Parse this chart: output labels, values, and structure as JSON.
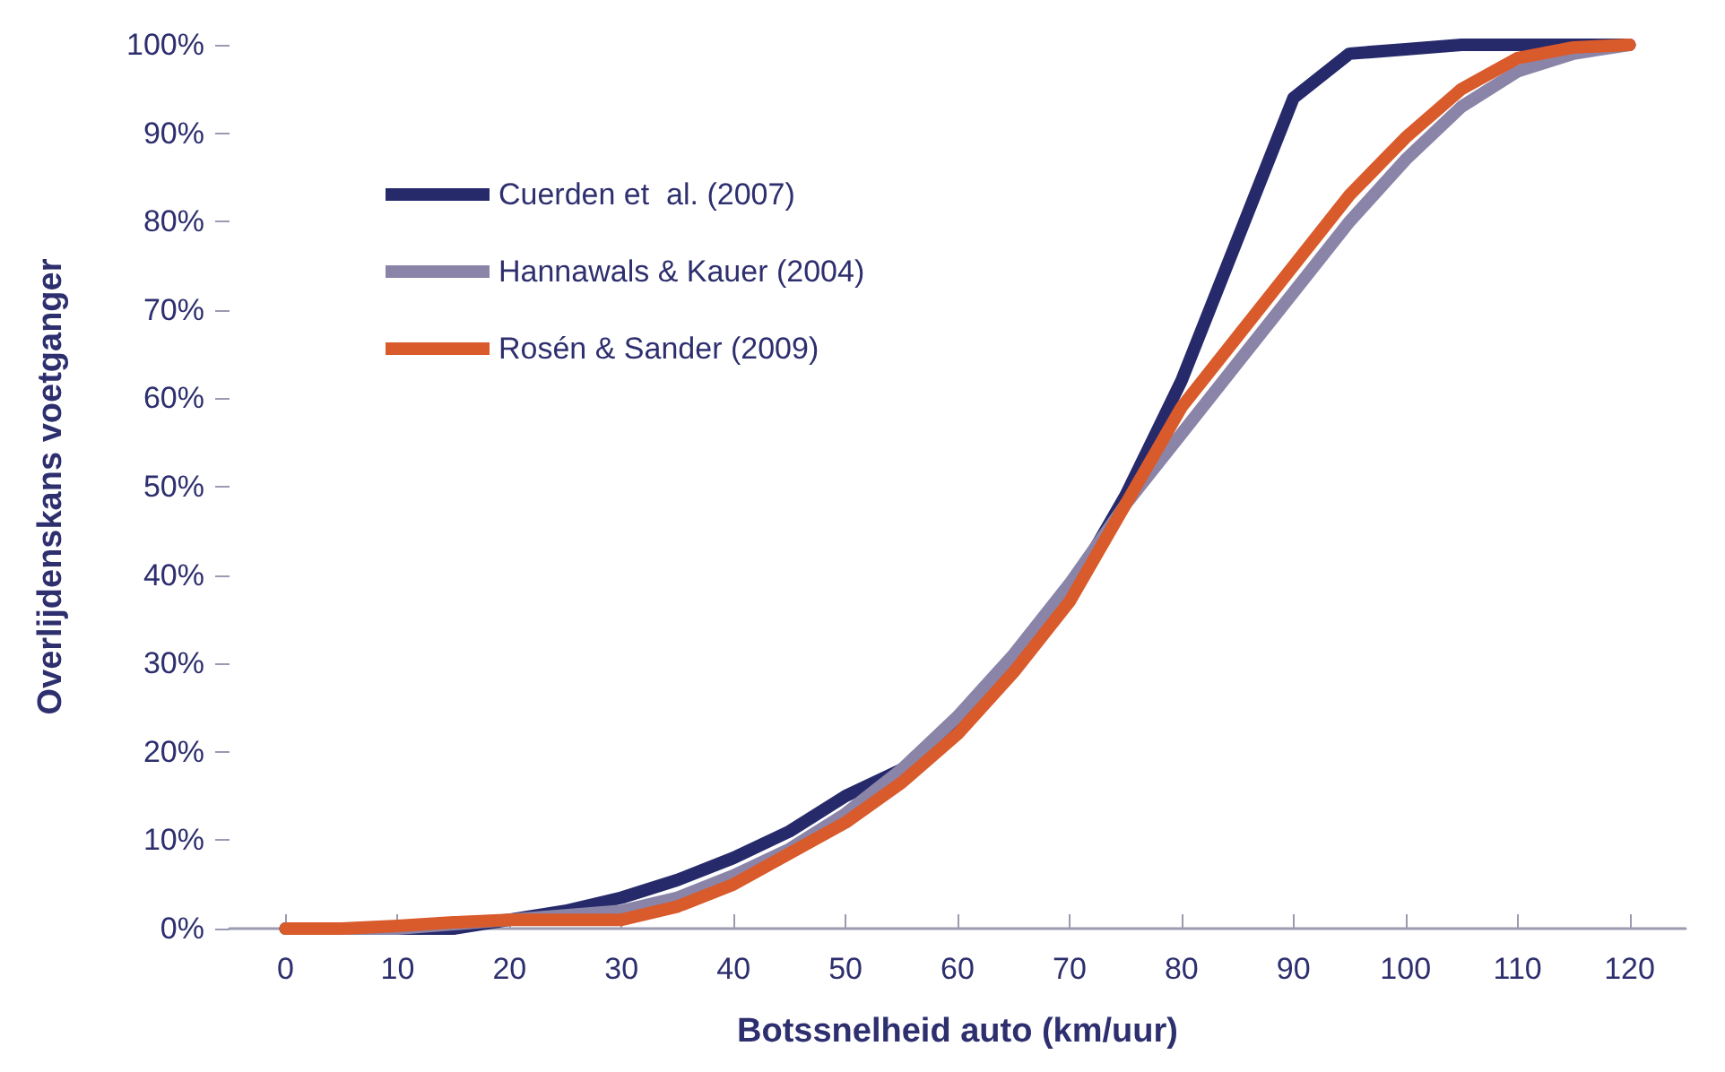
{
  "chart_data": {
    "type": "line",
    "xlabel": "Botssnelheid auto (km/uur)",
    "ylabel": "Overlijdenskans voetganger",
    "x": [
      0,
      5,
      10,
      15,
      20,
      25,
      30,
      35,
      40,
      45,
      50,
      55,
      60,
      65,
      70,
      75,
      80,
      85,
      90,
      95,
      100,
      105,
      110,
      115,
      120
    ],
    "series": [
      {
        "name": "Cuerden et  al. (2007)",
        "color": "#262a6b",
        "values": [
          0,
          0,
          0,
          0,
          1,
          2,
          3.5,
          5.5,
          8,
          11,
          15,
          18,
          23,
          30,
          38,
          49,
          62,
          78,
          94,
          99,
          99.5,
          100,
          100,
          100,
          100
        ]
      },
      {
        "name": "Hannawals & Kauer (2004)",
        "color": "#8a85a8",
        "values": [
          0,
          0,
          0,
          0.5,
          1,
          1.5,
          2,
          3.5,
          6,
          9,
          13,
          18,
          24,
          31,
          39,
          48,
          56,
          64,
          72,
          80,
          87,
          93,
          97,
          99,
          100
        ]
      },
      {
        "name": "Rosén & Sander (2009)",
        "color": "#d95a2b",
        "values": [
          0,
          0,
          0.3,
          0.7,
          1,
          1,
          1,
          2.5,
          5,
          8.5,
          12,
          16.5,
          22,
          29,
          37,
          48,
          59,
          67,
          75,
          83,
          89.5,
          95,
          98.5,
          99.7,
          100
        ]
      }
    ],
    "xlim": [
      -5,
      125
    ],
    "xticks": [
      0,
      10,
      20,
      30,
      40,
      50,
      60,
      70,
      80,
      90,
      100,
      110,
      120
    ],
    "ylim": [
      0,
      100
    ],
    "yticks": [
      {
        "value": 0,
        "label": "0%"
      },
      {
        "value": 10,
        "label": "10%"
      },
      {
        "value": 20,
        "label": "20%"
      },
      {
        "value": 30,
        "label": "30%"
      },
      {
        "value": 40,
        "label": "40%"
      },
      {
        "value": 50,
        "label": "50%"
      },
      {
        "value": 60,
        "label": "60%"
      },
      {
        "value": 70,
        "label": "70%"
      },
      {
        "value": 80,
        "label": "80%"
      },
      {
        "value": 90,
        "label": "90%"
      },
      {
        "value": 100,
        "label": "100%"
      }
    ],
    "grid": false,
    "legend": "top left",
    "marker": "none",
    "line_style": "solid"
  }
}
